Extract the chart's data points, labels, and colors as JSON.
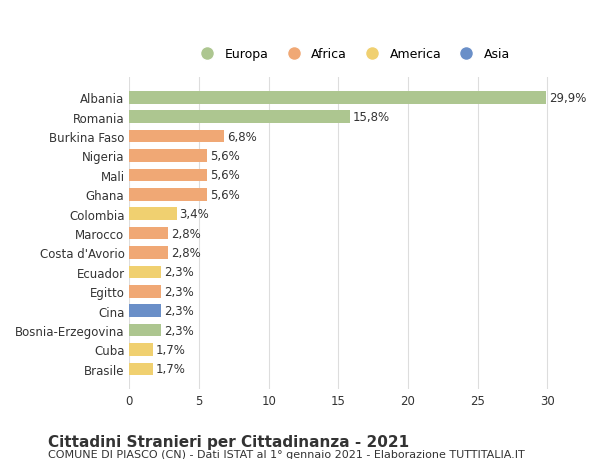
{
  "countries": [
    "Albania",
    "Romania",
    "Burkina Faso",
    "Nigeria",
    "Mali",
    "Ghana",
    "Colombia",
    "Marocco",
    "Costa d'Avorio",
    "Ecuador",
    "Egitto",
    "Cina",
    "Bosnia-Erzegovina",
    "Cuba",
    "Brasile"
  ],
  "values": [
    29.9,
    15.8,
    6.8,
    5.6,
    5.6,
    5.6,
    3.4,
    2.8,
    2.8,
    2.3,
    2.3,
    2.3,
    2.3,
    1.7,
    1.7
  ],
  "labels": [
    "29,9%",
    "15,8%",
    "6,8%",
    "5,6%",
    "5,6%",
    "5,6%",
    "3,4%",
    "2,8%",
    "2,8%",
    "2,3%",
    "2,3%",
    "2,3%",
    "2,3%",
    "1,7%",
    "1,7%"
  ],
  "continents": [
    "Europa",
    "Europa",
    "Africa",
    "Africa",
    "Africa",
    "Africa",
    "America",
    "Africa",
    "Africa",
    "America",
    "Africa",
    "Asia",
    "Europa",
    "America",
    "America"
  ],
  "colors": {
    "Europa": "#adc690",
    "Africa": "#f0a875",
    "America": "#f0d070",
    "Asia": "#6a8fc8"
  },
  "legend_order": [
    "Europa",
    "Africa",
    "America",
    "Asia"
  ],
  "xlim": [
    0,
    32
  ],
  "xticks": [
    0,
    5,
    10,
    15,
    20,
    25,
    30
  ],
  "title": "Cittadini Stranieri per Cittadinanza - 2021",
  "subtitle": "COMUNE DI PIASCO (CN) - Dati ISTAT al 1° gennaio 2021 - Elaborazione TUTTITALIA.IT",
  "bar_height": 0.65,
  "background_color": "#ffffff",
  "grid_color": "#dddddd",
  "text_color": "#333333",
  "label_fontsize": 8.5,
  "tick_fontsize": 8.5,
  "title_fontsize": 11,
  "subtitle_fontsize": 8
}
